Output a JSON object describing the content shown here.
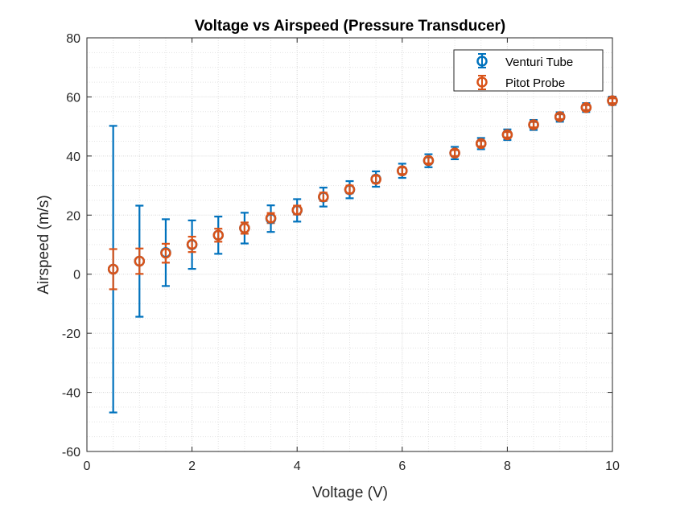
{
  "chart_data": {
    "type": "scatter",
    "title": "Voltage vs Airspeed (Pressure Transducer)",
    "xlabel": "Voltage (V)",
    "ylabel": "Airspeed (m/s)",
    "xlim": [
      0,
      10
    ],
    "ylim": [
      -60,
      80
    ],
    "x_ticks": [
      0,
      2,
      4,
      6,
      8,
      10
    ],
    "y_ticks": [
      -60,
      -40,
      -20,
      0,
      20,
      40,
      60,
      80
    ],
    "x_tick_labels": [
      "0",
      "2",
      "4",
      "6",
      "8",
      "10"
    ],
    "y_tick_labels": [
      "-60",
      "-40",
      "-20",
      "0",
      "20",
      "40",
      "60",
      "80"
    ],
    "grid": true,
    "minor_grid": true,
    "legend_position": "top-right",
    "marker": "circle-with-errorbars",
    "series": [
      {
        "name": "Venturi Tube",
        "color": "#0072BD",
        "x": [
          0.5,
          1.0,
          1.5,
          2.0,
          2.5,
          3.0,
          3.5,
          4.0,
          4.5,
          5.0,
          5.5,
          6.0,
          6.5,
          7.0,
          7.5,
          8.0,
          8.5,
          9.0,
          9.5,
          10.0
        ],
        "y": [
          1.7,
          4.4,
          7.3,
          10.0,
          13.2,
          15.6,
          18.8,
          21.6,
          26.1,
          28.6,
          32.2,
          35.0,
          38.4,
          41.0,
          44.2,
          47.2,
          50.5,
          53.2,
          56.4,
          58.7
        ],
        "error": [
          48.5,
          18.8,
          11.3,
          8.2,
          6.3,
          5.2,
          4.5,
          3.8,
          3.2,
          2.9,
          2.6,
          2.4,
          2.2,
          2.1,
          1.9,
          1.8,
          1.7,
          1.6,
          1.5,
          1.4
        ]
      },
      {
        "name": "Pitot Probe",
        "color": "#D95319",
        "x": [
          0.5,
          1.0,
          1.5,
          2.0,
          2.5,
          3.0,
          3.5,
          4.0,
          4.5,
          5.0,
          5.5,
          6.0,
          6.5,
          7.0,
          7.5,
          8.0,
          8.5,
          9.0,
          9.5,
          10.0
        ],
        "y": [
          1.7,
          4.4,
          7.1,
          10.1,
          13.2,
          15.6,
          19.0,
          21.7,
          26.2,
          28.7,
          32.1,
          35.0,
          38.5,
          41.0,
          44.2,
          47.2,
          50.6,
          53.3,
          56.4,
          58.7
        ],
        "error": [
          6.8,
          4.3,
          3.2,
          2.6,
          2.2,
          1.9,
          1.7,
          1.5,
          1.4,
          1.3,
          1.2,
          1.1,
          1.0,
          1.0,
          0.9,
          0.9,
          0.9,
          0.8,
          0.8,
          0.8
        ]
      }
    ]
  }
}
